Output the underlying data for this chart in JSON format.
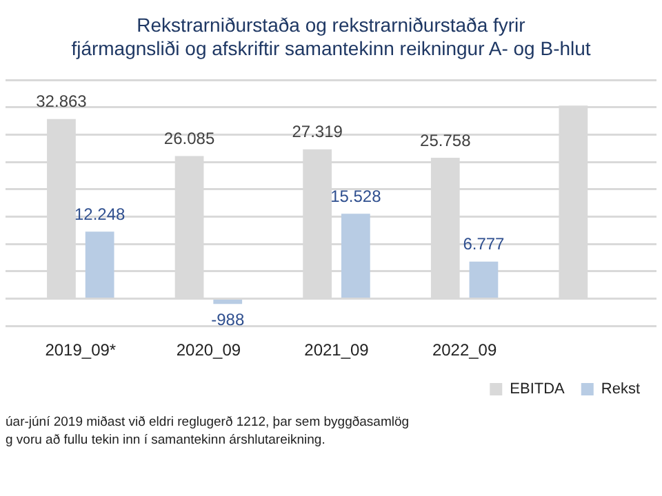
{
  "chart_data": {
    "type": "bar",
    "title": "Rekstrarniðurstaða og rekstrarniðurstaða fyrir\nfjármagnsliði og afskriftir samantekinn reikningur A- og B-hlut",
    "categories": [
      "2019_09*",
      "2020_09",
      "2021_09",
      "2022_09",
      null
    ],
    "series": [
      {
        "name": "EBITDA",
        "color": "#d9d9d9",
        "values": [
          32863,
          26085,
          27319,
          25758,
          35300
        ],
        "value_labels": [
          "32.863",
          "26.085",
          "27.319",
          "25.758",
          null
        ]
      },
      {
        "name": "Rekst",
        "color": "#b8cce4",
        "values": [
          12248,
          -988,
          15528,
          6777,
          null
        ],
        "value_labels": [
          "12.248",
          "-988",
          "15.528",
          "6.777",
          null
        ]
      }
    ],
    "grid": "y",
    "tick_labels": "x",
    "legend": "bottom right",
    "annotations": [
      "úar-júní 2019 miðast við eldri reglugerð 1212, þar sem byggðasamlög\ng voru að fullu tekin inn í samantekinn árshlutareikning."
    ]
  }
}
